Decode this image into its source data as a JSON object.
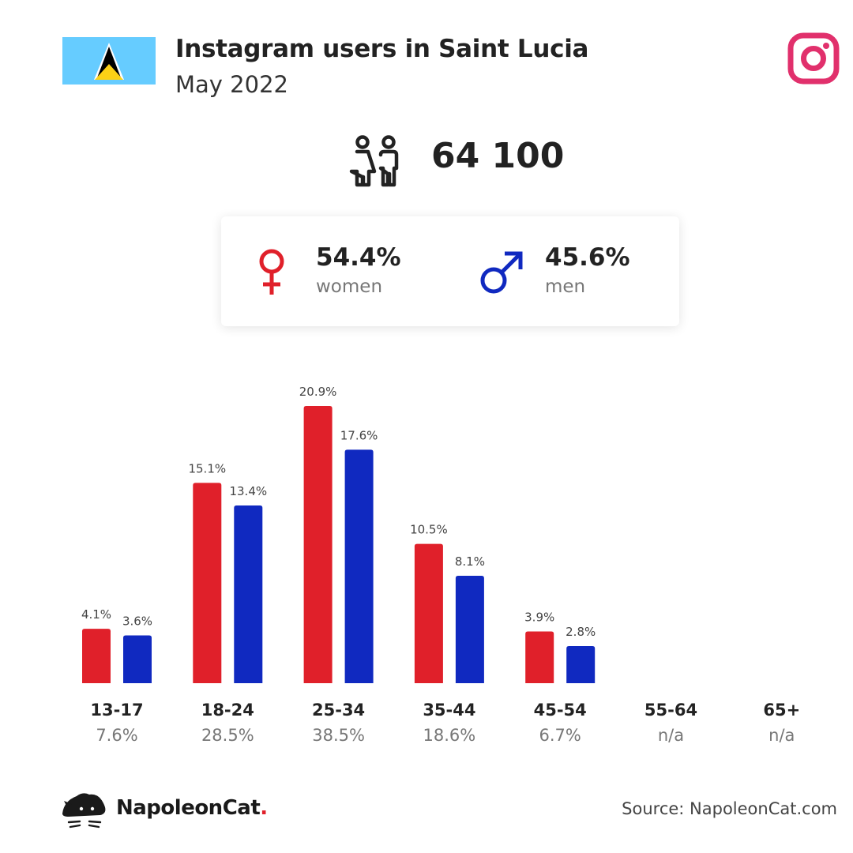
{
  "header": {
    "title": "Instagram users in Saint Lucia",
    "subtitle": "May 2022",
    "flag_icon": "saint-lucia-flag",
    "platform_icon": "instagram-icon",
    "platform_color": "#e1306c"
  },
  "summary": {
    "total_icon": "people-icon",
    "total_users": "64 100",
    "women": {
      "percent": "54.4%",
      "label": "women",
      "icon": "female-symbol-icon",
      "color": "#e0202a"
    },
    "men": {
      "percent": "45.6%",
      "label": "men",
      "icon": "male-symbol-icon",
      "color": "#1029c0"
    }
  },
  "chart_data": {
    "type": "bar",
    "categories": [
      "13-17",
      "18-24",
      "25-34",
      "35-44",
      "45-54",
      "55-64",
      "65+"
    ],
    "category_totals": [
      "7.6%",
      "28.5%",
      "38.5%",
      "18.6%",
      "6.7%",
      "n/a",
      "n/a"
    ],
    "series": [
      {
        "name": "women",
        "color": "#e0202a",
        "values": [
          4.1,
          15.1,
          20.9,
          10.5,
          3.9,
          null,
          null
        ]
      },
      {
        "name": "men",
        "color": "#1029c0",
        "values": [
          3.6,
          13.4,
          17.6,
          8.1,
          2.8,
          null,
          null
        ]
      }
    ],
    "value_suffix": "%",
    "ylim": [
      0,
      20.9
    ],
    "grid": false
  },
  "footer": {
    "brand_name": "NapoleonCat",
    "brand_dot": ".",
    "logo_icon": "napoleoncat-logo-icon",
    "source": "Source: NapoleonCat.com"
  }
}
